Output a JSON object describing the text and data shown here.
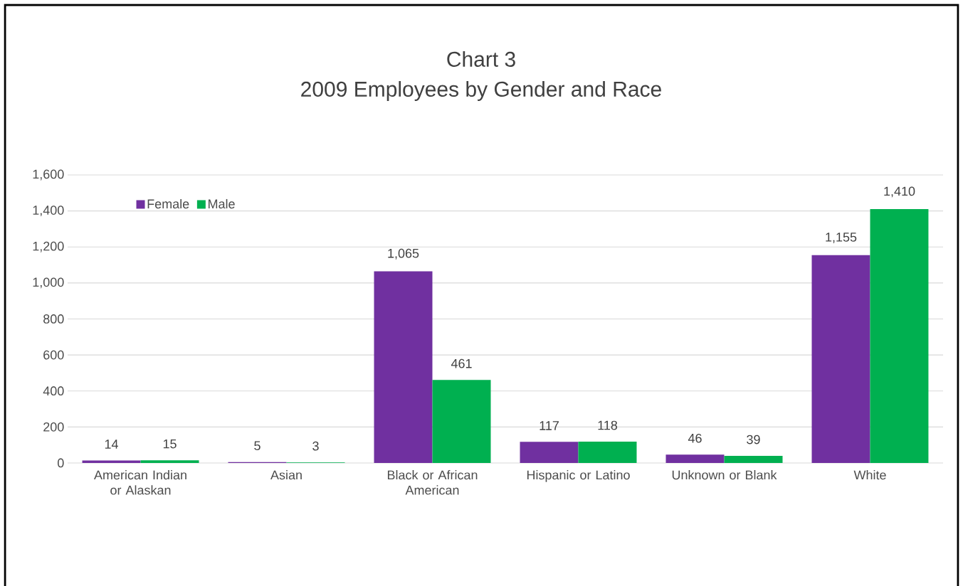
{
  "chart_data": {
    "type": "bar",
    "title": "Chart 3",
    "subtitle": "2009 Employees by Gender and Race",
    "categories": [
      "American Indian or Alaskan",
      "Asian",
      "Black or African American",
      "Hispanic or Latino",
      "Unknown or Blank",
      "White"
    ],
    "series": [
      {
        "name": "Female",
        "color": "#7030a0",
        "values": [
          14,
          5,
          1065,
          117,
          46,
          1155
        ],
        "value_labels": [
          "14",
          "5",
          "1,065",
          "117",
          "46",
          "1,155"
        ]
      },
      {
        "name": "Male",
        "color": "#00b050",
        "values": [
          15,
          3,
          461,
          118,
          39,
          1410
        ],
        "value_labels": [
          "15",
          "3",
          "461",
          "118",
          "39",
          "1,410"
        ]
      }
    ],
    "ylim": [
      0,
      1600
    ],
    "yticks": [
      0,
      200,
      400,
      600,
      800,
      {
        "value": 1000,
        "label": "1,000"
      },
      {
        "value": 1200,
        "label": "1,200"
      },
      {
        "value": 1400,
        "label": "1,400"
      },
      {
        "value": 1600,
        "label": "1,600"
      }
    ],
    "grid": "y",
    "legend": "top left"
  }
}
